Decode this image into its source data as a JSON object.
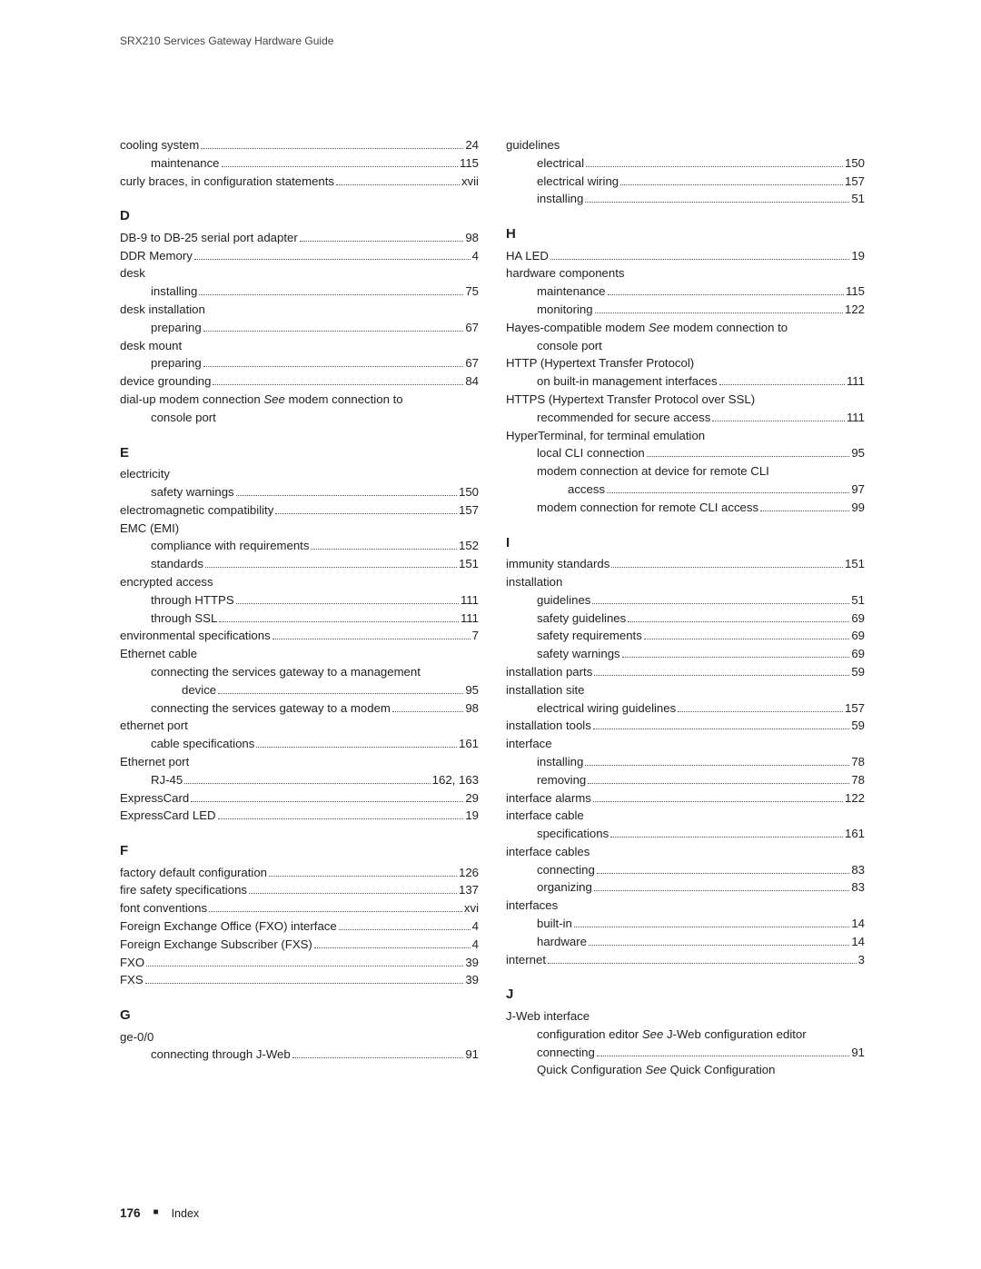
{
  "header": "SRX210 Services Gateway Hardware Guide",
  "footer": {
    "page": "176",
    "square": "■",
    "section": "Index"
  },
  "left": [
    {
      "type": "row",
      "indent": 0,
      "text": "cooling system",
      "page": "24"
    },
    {
      "type": "row",
      "indent": 1,
      "text": "maintenance",
      "page": "115"
    },
    {
      "type": "row",
      "indent": 0,
      "text": "curly braces, in configuration statements",
      "page": "xvii"
    },
    {
      "type": "letter",
      "text": "D"
    },
    {
      "type": "row",
      "indent": 0,
      "text": "DB-9 to DB-25 serial port adapter",
      "page": "98"
    },
    {
      "type": "row",
      "indent": 0,
      "text": "DDR Memory",
      "page": "4"
    },
    {
      "type": "row",
      "indent": 0,
      "text": "desk"
    },
    {
      "type": "row",
      "indent": 1,
      "text": "installing",
      "page": "75"
    },
    {
      "type": "row",
      "indent": 0,
      "text": "desk installation"
    },
    {
      "type": "row",
      "indent": 1,
      "text": "preparing",
      "page": "67"
    },
    {
      "type": "row",
      "indent": 0,
      "text": "desk mount"
    },
    {
      "type": "row",
      "indent": 1,
      "text": "preparing",
      "page": "67"
    },
    {
      "type": "row",
      "indent": 0,
      "text": "device grounding",
      "page": "84"
    },
    {
      "type": "row",
      "indent": 0,
      "html": "dial-up modem connection <i>See</i> modem connection to"
    },
    {
      "type": "row",
      "indent": 1,
      "text": "console port"
    },
    {
      "type": "letter",
      "text": "E"
    },
    {
      "type": "row",
      "indent": 0,
      "text": "electricity"
    },
    {
      "type": "row",
      "indent": 1,
      "text": "safety warnings",
      "page": "150"
    },
    {
      "type": "row",
      "indent": 0,
      "text": "electromagnetic compatibility",
      "page": "157"
    },
    {
      "type": "row",
      "indent": 0,
      "text": "EMC (EMI)"
    },
    {
      "type": "row",
      "indent": 1,
      "text": "compliance with requirements",
      "page": "152"
    },
    {
      "type": "row",
      "indent": 1,
      "text": "standards",
      "page": "151"
    },
    {
      "type": "row",
      "indent": 0,
      "text": "encrypted access"
    },
    {
      "type": "row",
      "indent": 1,
      "text": "through HTTPS",
      "page": "111"
    },
    {
      "type": "row",
      "indent": 1,
      "text": "through SSL",
      "page": "111"
    },
    {
      "type": "row",
      "indent": 0,
      "text": "environmental specifications",
      "page": "7"
    },
    {
      "type": "row",
      "indent": 0,
      "text": "Ethernet cable"
    },
    {
      "type": "row",
      "indent": 1,
      "text": "connecting the services gateway to a management"
    },
    {
      "type": "row",
      "indent": 2,
      "text": "device",
      "page": "95"
    },
    {
      "type": "row",
      "indent": 1,
      "text": "connecting the services gateway to a modem",
      "page": "98"
    },
    {
      "type": "row",
      "indent": 0,
      "text": "ethernet port"
    },
    {
      "type": "row",
      "indent": 1,
      "text": "cable specifications",
      "page": "161"
    },
    {
      "type": "row",
      "indent": 0,
      "text": "Ethernet port"
    },
    {
      "type": "row",
      "indent": 1,
      "text": "RJ-45",
      "page": "162, 163"
    },
    {
      "type": "row",
      "indent": 0,
      "text": "ExpressCard",
      "page": "29"
    },
    {
      "type": "row",
      "indent": 0,
      "text": "ExpressCard LED",
      "page": "19"
    },
    {
      "type": "letter",
      "text": "F"
    },
    {
      "type": "row",
      "indent": 0,
      "text": "factory default configuration",
      "page": "126"
    },
    {
      "type": "row",
      "indent": 0,
      "text": "fire safety specifications",
      "page": "137"
    },
    {
      "type": "row",
      "indent": 0,
      "text": "font conventions",
      "page": "xvi"
    },
    {
      "type": "row",
      "indent": 0,
      "text": "Foreign Exchange Office (FXO) interface",
      "page": "4"
    },
    {
      "type": "row",
      "indent": 0,
      "text": "Foreign Exchange Subscriber (FXS) ",
      "page": "4"
    },
    {
      "type": "row",
      "indent": 0,
      "text": "FXO",
      "page": "39"
    },
    {
      "type": "row",
      "indent": 0,
      "text": "FXS",
      "page": "39"
    },
    {
      "type": "letter",
      "text": "G"
    },
    {
      "type": "row",
      "indent": 0,
      "text": "ge-0/0"
    },
    {
      "type": "row",
      "indent": 1,
      "text": "connecting through J-Web",
      "page": "91"
    }
  ],
  "right": [
    {
      "type": "row",
      "indent": 0,
      "text": "guidelines"
    },
    {
      "type": "row",
      "indent": 1,
      "text": "electrical",
      "page": "150"
    },
    {
      "type": "row",
      "indent": 1,
      "text": "electrical wiring",
      "page": "157"
    },
    {
      "type": "row",
      "indent": 1,
      "text": "installing",
      "page": "51"
    },
    {
      "type": "letter",
      "text": "H"
    },
    {
      "type": "row",
      "indent": 0,
      "text": "HA LED",
      "page": "19"
    },
    {
      "type": "row",
      "indent": 0,
      "text": "hardware components"
    },
    {
      "type": "row",
      "indent": 1,
      "text": "maintenance",
      "page": "115"
    },
    {
      "type": "row",
      "indent": 1,
      "text": "monitoring",
      "page": "122"
    },
    {
      "type": "row",
      "indent": 0,
      "html": "Hayes-compatible modem <i>See</i> modem connection to"
    },
    {
      "type": "row",
      "indent": 1,
      "text": "console port"
    },
    {
      "type": "row",
      "indent": 0,
      "text": "HTTP (Hypertext Transfer Protocol)"
    },
    {
      "type": "row",
      "indent": 1,
      "text": "on built-in management interfaces",
      "page": "111"
    },
    {
      "type": "row",
      "indent": 0,
      "text": "HTTPS (Hypertext Transfer Protocol over SSL)"
    },
    {
      "type": "row",
      "indent": 1,
      "text": "recommended for secure access",
      "page": "111"
    },
    {
      "type": "row",
      "indent": 0,
      "text": "HyperTerminal, for terminal emulation"
    },
    {
      "type": "row",
      "indent": 1,
      "text": "local CLI connection",
      "page": "95"
    },
    {
      "type": "row",
      "indent": 1,
      "text": "modem connection at device for remote CLI"
    },
    {
      "type": "row",
      "indent": 2,
      "text": "access",
      "page": "97"
    },
    {
      "type": "row",
      "indent": 1,
      "text": "modem connection for remote CLI access",
      "page": "99"
    },
    {
      "type": "letter",
      "text": "I"
    },
    {
      "type": "row",
      "indent": 0,
      "text": "immunity standards",
      "page": "151"
    },
    {
      "type": "row",
      "indent": 0,
      "text": "installation"
    },
    {
      "type": "row",
      "indent": 1,
      "text": "guidelines",
      "page": "51"
    },
    {
      "type": "row",
      "indent": 1,
      "text": "safety guidelines",
      "page": "69"
    },
    {
      "type": "row",
      "indent": 1,
      "text": "safety requirements",
      "page": "69"
    },
    {
      "type": "row",
      "indent": 1,
      "text": "safety warnings",
      "page": "69"
    },
    {
      "type": "row",
      "indent": 0,
      "text": "installation parts",
      "page": "59"
    },
    {
      "type": "row",
      "indent": 0,
      "text": "installation site"
    },
    {
      "type": "row",
      "indent": 1,
      "text": "electrical wiring guidelines",
      "page": "157"
    },
    {
      "type": "row",
      "indent": 0,
      "text": "installation tools",
      "page": "59"
    },
    {
      "type": "row",
      "indent": 0,
      "text": "interface"
    },
    {
      "type": "row",
      "indent": 1,
      "text": "installing",
      "page": "78"
    },
    {
      "type": "row",
      "indent": 1,
      "text": "removing",
      "page": "78"
    },
    {
      "type": "row",
      "indent": 0,
      "text": "interface alarms",
      "page": "122"
    },
    {
      "type": "row",
      "indent": 0,
      "text": "interface cable"
    },
    {
      "type": "row",
      "indent": 1,
      "text": "specifications",
      "page": "161"
    },
    {
      "type": "row",
      "indent": 0,
      "text": "interface cables"
    },
    {
      "type": "row",
      "indent": 1,
      "text": "connecting",
      "page": "83"
    },
    {
      "type": "row",
      "indent": 1,
      "text": "organizing",
      "page": "83"
    },
    {
      "type": "row",
      "indent": 0,
      "text": "interfaces"
    },
    {
      "type": "row",
      "indent": 1,
      "text": "built-in",
      "page": "14"
    },
    {
      "type": "row",
      "indent": 1,
      "text": "hardware",
      "page": "14"
    },
    {
      "type": "row",
      "indent": 0,
      "text": "internet",
      "page": "3"
    },
    {
      "type": "letter",
      "text": "J"
    },
    {
      "type": "row",
      "indent": 0,
      "text": "J-Web interface"
    },
    {
      "type": "row",
      "indent": 1,
      "html": "configuration editor <i>See</i> J-Web configuration editor"
    },
    {
      "type": "row",
      "indent": 1,
      "text": "connecting",
      "page": "91"
    },
    {
      "type": "row",
      "indent": 1,
      "html": "Quick Configuration <i>See</i> Quick Configuration"
    }
  ]
}
